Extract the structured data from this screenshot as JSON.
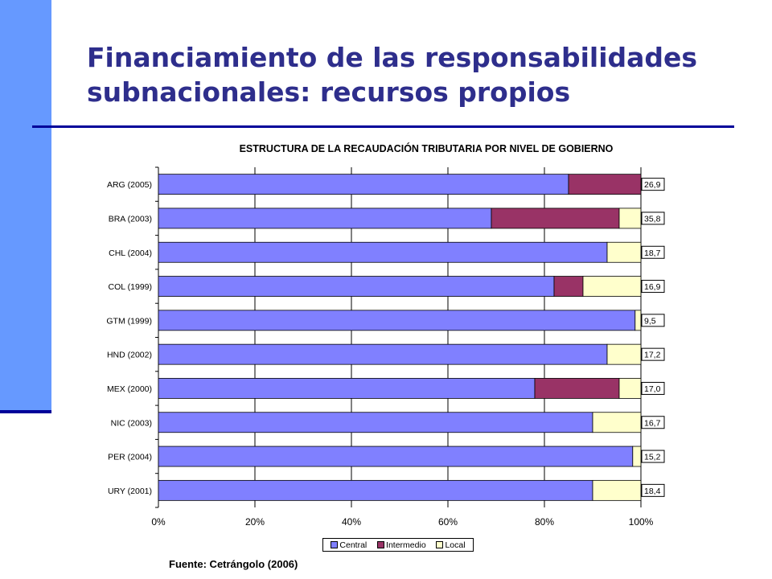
{
  "slide": {
    "title": "Financiamiento de las responsabilidades\nsubnacionales: recursos propios",
    "source": "Fuente: Cetrángolo (2006)"
  },
  "chart_data": {
    "type": "bar",
    "orientation": "horizontal",
    "stacked": "percent",
    "title": "ESTRUCTURA DE LA RECAUDACIÓN TRIBUTARIA POR NIVEL DE GOBIERNO",
    "categories": [
      "ARG (2005)",
      "BRA (2003)",
      "CHL (2004)",
      "COL (1999)",
      "GTM (1999)",
      "HND (2002)",
      "MEX (2000)",
      "NIC (2003)",
      "PER (2004)",
      "URY (2001)"
    ],
    "series": [
      {
        "name": "Central",
        "color": "#8080ff",
        "values": [
          85,
          69,
          93,
          82,
          98.8,
          93,
          78,
          90,
          98.3,
          90
        ]
      },
      {
        "name": "Intermedio",
        "color": "#993366",
        "values": [
          15,
          26.5,
          0,
          6,
          0,
          0,
          17.5,
          0,
          0,
          0
        ]
      },
      {
        "name": "Local",
        "color": "#ffffcc",
        "values": [
          0,
          4.5,
          7,
          12,
          1.2,
          7,
          4.5,
          10,
          1.7,
          10
        ]
      }
    ],
    "data_labels": [
      "26,9",
      "35,8",
      "18,7",
      "16,9",
      "9,5",
      "17,2",
      "17,0",
      "16,7",
      "15,2",
      "18,4"
    ],
    "xlim": [
      0,
      100
    ],
    "x_ticks": [
      "0%",
      "20%",
      "40%",
      "60%",
      "80%",
      "100%"
    ],
    "grid": true,
    "legend": "bottom"
  }
}
